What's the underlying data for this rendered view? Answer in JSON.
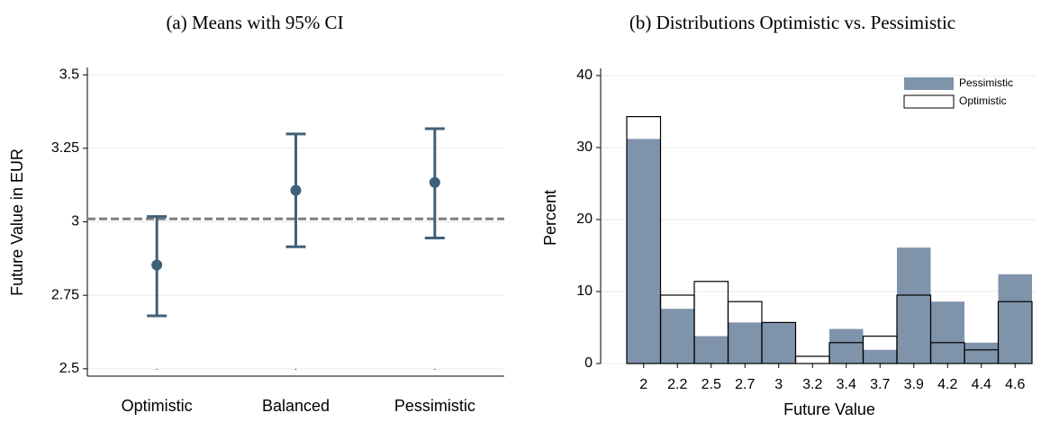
{
  "chart_data": [
    {
      "type": "errorbar",
      "title": "(a) Means with 95% CI",
      "ylabel": "Future Value in EUR",
      "categories": [
        "Optimistic",
        "Balanced",
        "Pessimistic"
      ],
      "values": [
        2.853,
        3.107,
        3.134
      ],
      "lower": [
        2.68,
        2.915,
        2.945
      ],
      "upper": [
        3.018,
        3.299,
        3.317
      ],
      "color": "#3f6079",
      "ylim": [
        2.475,
        3.525
      ],
      "yticks": [
        2.5,
        2.75,
        3,
        3.25,
        3.5
      ],
      "grid": true,
      "reference_line": {
        "value": 3.01,
        "color": "#7f7f7f",
        "style": "dashed"
      }
    },
    {
      "type": "bar",
      "title": "(b) Distributions Optimistic vs. Pessimistic",
      "xlabel": "Future Value",
      "ylabel": "Percent",
      "categories": [
        "2",
        "2.2",
        "2.5",
        "2.7",
        "3",
        "3.2",
        "3.4",
        "3.7",
        "3.9",
        "4.2",
        "4.4",
        "4.6"
      ],
      "series": [
        {
          "name": "Pessimistic",
          "color": "#7f93aa",
          "values": [
            31.2,
            7.6,
            3.8,
            5.7,
            5.7,
            0,
            4.8,
            1.9,
            16.1,
            8.6,
            2.9,
            12.4
          ]
        },
        {
          "name": "Optimistic",
          "color": "#000000",
          "values": [
            34.3,
            9.5,
            11.4,
            8.6,
            5.7,
            1.0,
            2.9,
            3.8,
            9.5,
            2.9,
            1.9,
            8.6
          ]
        }
      ],
      "ylim": [
        0,
        41
      ],
      "yticks": [
        0,
        10,
        20,
        30,
        40
      ],
      "grid": true,
      "legend": "upper right"
    }
  ]
}
